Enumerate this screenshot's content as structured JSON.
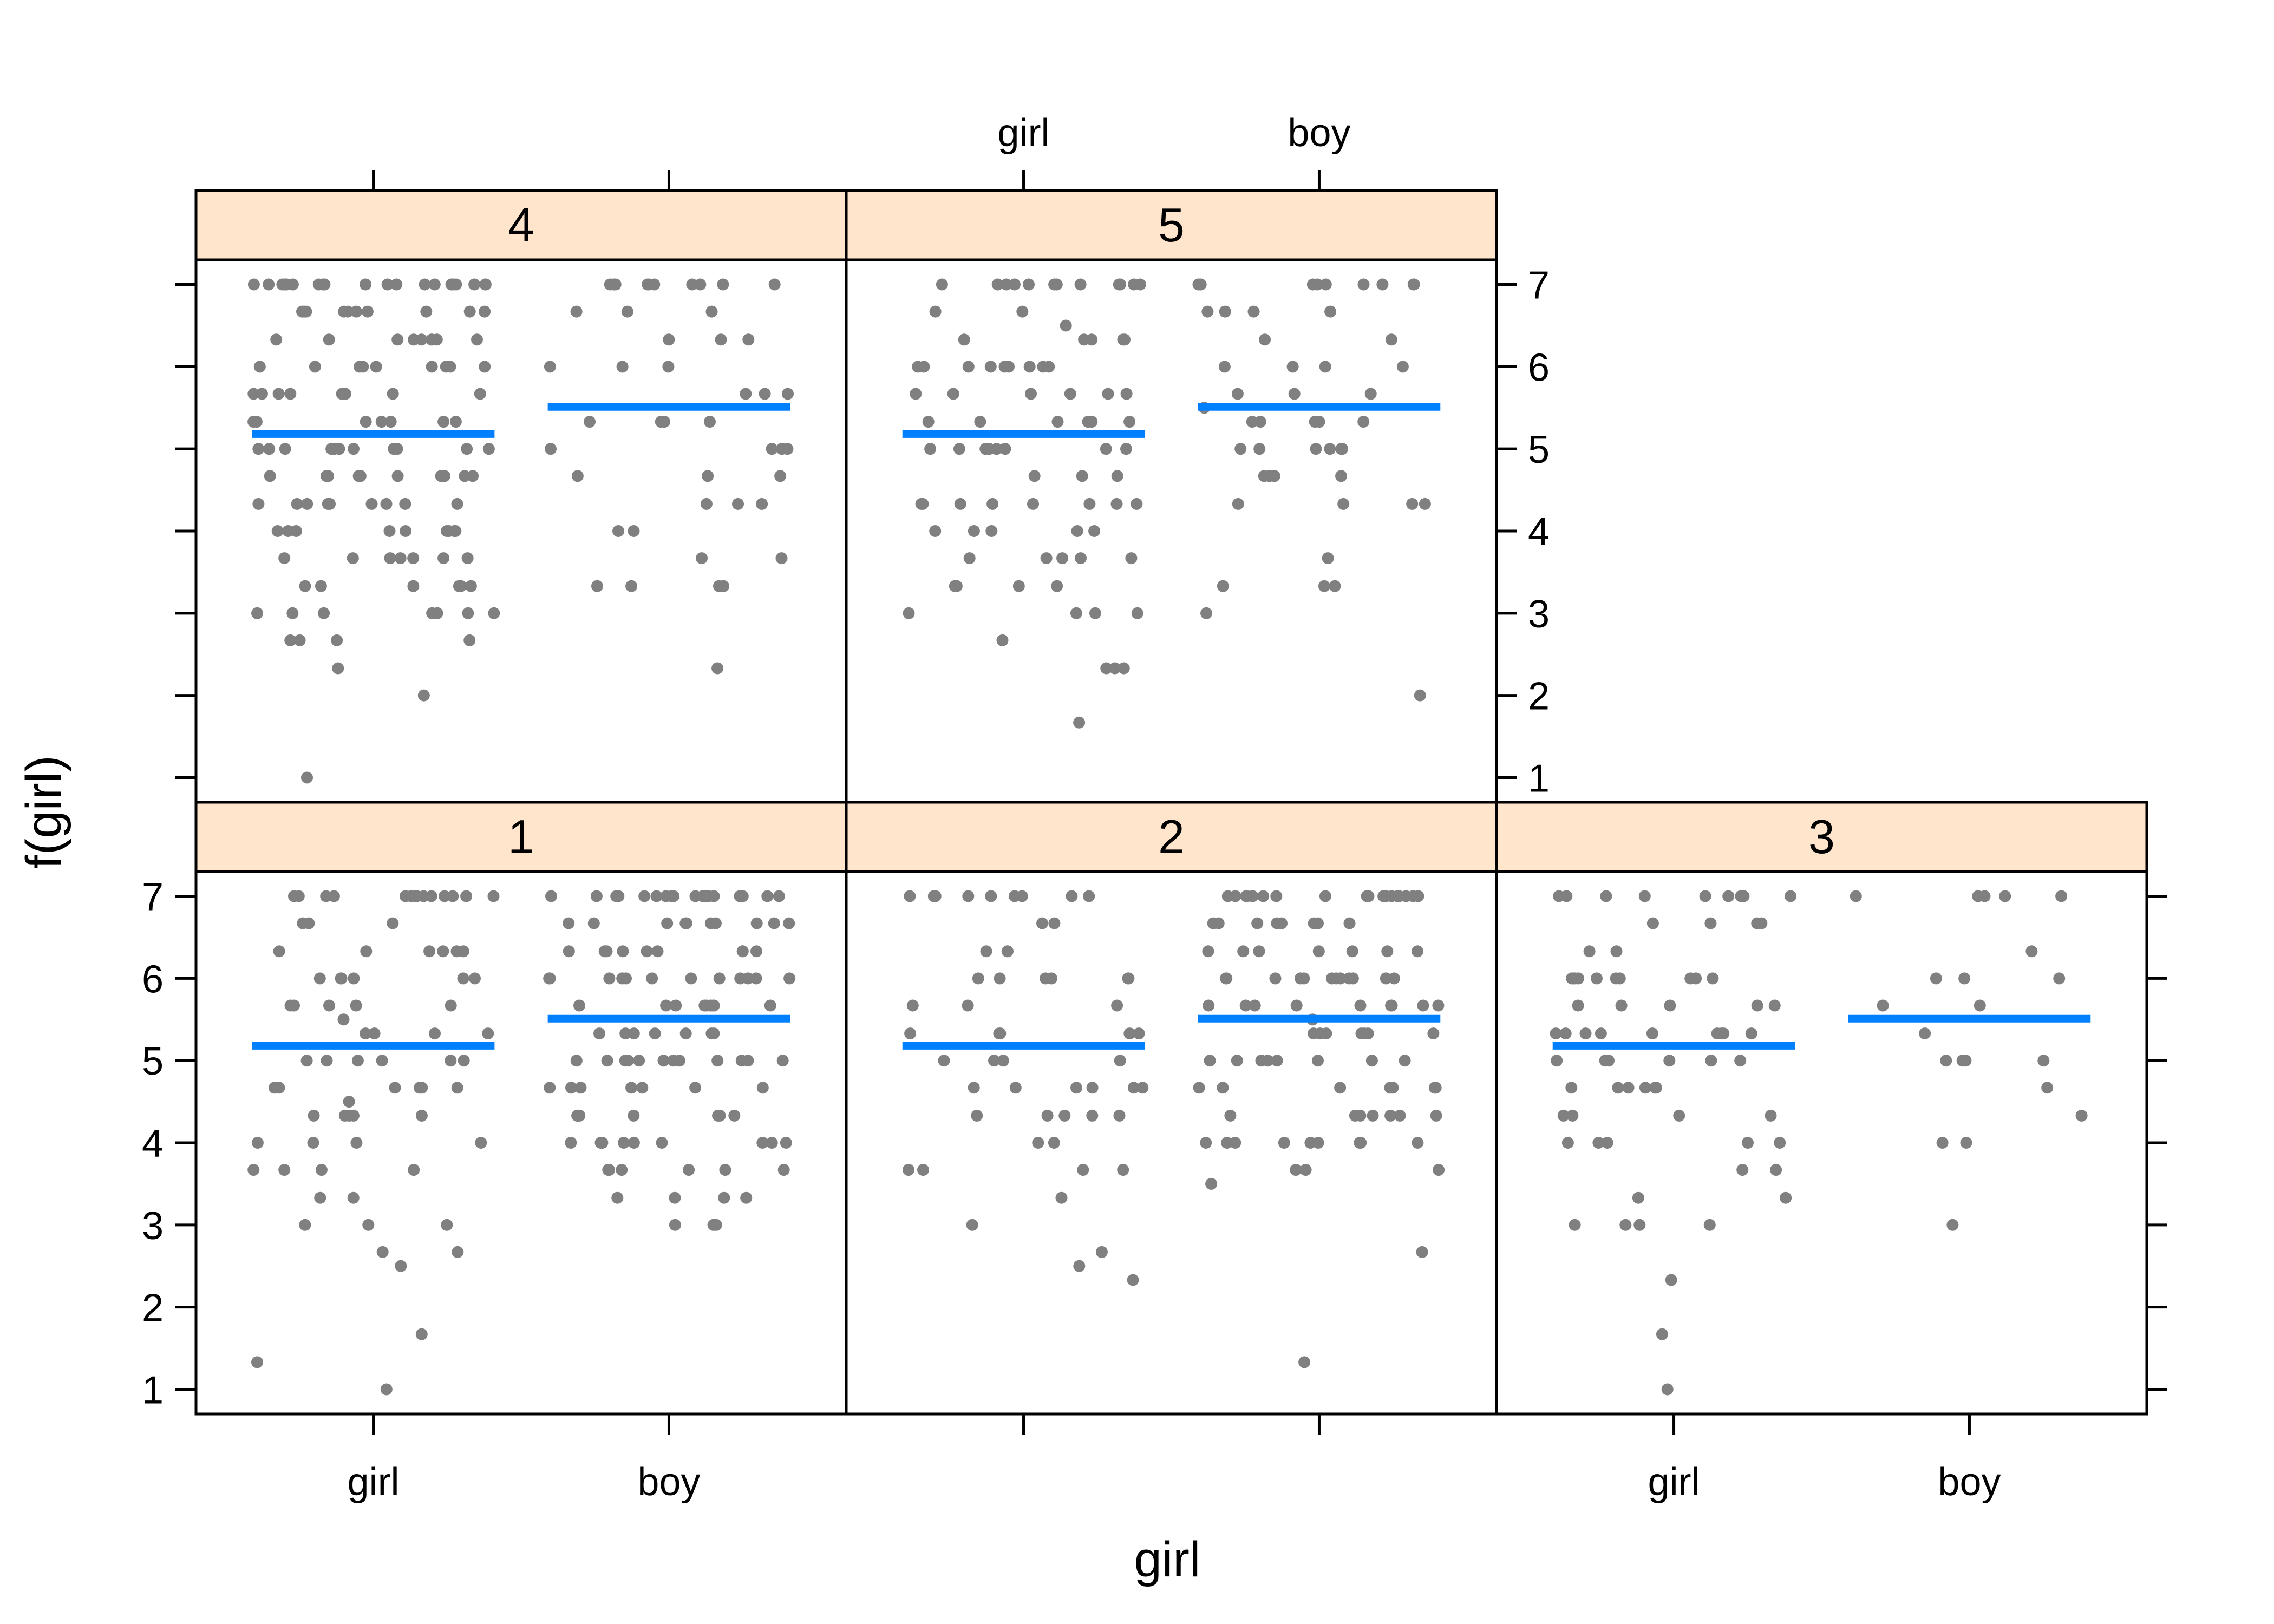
{
  "chart_data": {
    "type": "scatter",
    "xlabel": "girl",
    "ylabel": "f(girl)",
    "x_categories": [
      "girl",
      "boy"
    ],
    "y_ticks": [
      1,
      2,
      3,
      4,
      5,
      6,
      7
    ],
    "ylim": [
      0.7,
      7.3
    ],
    "colors": {
      "points": "#808080",
      "fit_line": "#0080ff",
      "strip": "#ffe5cc"
    },
    "panels": [
      {
        "label": "1",
        "fit": {
          "girl": 5.18,
          "boy": 5.51
        },
        "points": {
          "girl": [
            7,
            7,
            7,
            7,
            7,
            7,
            7,
            7,
            7,
            7,
            7,
            7,
            7,
            7,
            6.67,
            6.67,
            6.67,
            6.33,
            6.33,
            6.33,
            6.33,
            6.33,
            6.33,
            6,
            6,
            6,
            6,
            6,
            6,
            5.67,
            5.67,
            5.67,
            5.67,
            5.67,
            5.5,
            5.33,
            5.33,
            5.33,
            5.33,
            5,
            5,
            5,
            5,
            5,
            5,
            4.67,
            4.67,
            4.67,
            4.67,
            4.67,
            4.67,
            4.5,
            4.33,
            4.33,
            4.33,
            4.33,
            4.33,
            4,
            4,
            4,
            4,
            3.67,
            3.67,
            3.67,
            3.67,
            3.33,
            3.33,
            3,
            3,
            3,
            2.67,
            2.67,
            2.5,
            1.67,
            1.33,
            1
          ],
          "boy": [
            7,
            7,
            7,
            7,
            7,
            7,
            7,
            7,
            7,
            7,
            7,
            7,
            7,
            7,
            7,
            7,
            7,
            7,
            6.67,
            6.67,
            6.67,
            6.67,
            6.67,
            6.67,
            6.67,
            6.67,
            6.67,
            6.67,
            6.33,
            6.33,
            6.33,
            6.33,
            6.33,
            6.33,
            6.33,
            6.33,
            6.33,
            6,
            6,
            6,
            6,
            6,
            6,
            6,
            6,
            6,
            6,
            6,
            6,
            5.67,
            5.67,
            5.67,
            5.67,
            5.67,
            5.67,
            5.67,
            5.67,
            5.67,
            5.33,
            5.33,
            5.33,
            5.33,
            5.33,
            5.33,
            5.33,
            5,
            5,
            5,
            5,
            5,
            5,
            5,
            5,
            5,
            5,
            5,
            5,
            5,
            4.67,
            4.67,
            4.67,
            4.67,
            4.67,
            4.67,
            4.67,
            4.33,
            4.33,
            4.33,
            4.33,
            4.33,
            4.33,
            4.33,
            4,
            4,
            4,
            4,
            4,
            4,
            4,
            4,
            4,
            3.67,
            3.67,
            3.67,
            3.67,
            3.67,
            3.67,
            3.33,
            3.33,
            3.33,
            3.33,
            3,
            3,
            3
          ]
        }
      },
      {
        "label": "2",
        "fit": {
          "girl": 5.18,
          "boy": 5.51
        },
        "points": {
          "girl": [
            7,
            7,
            7,
            7,
            7,
            7,
            7,
            7,
            7,
            6.67,
            6.67,
            6.33,
            6.33,
            6.33,
            6,
            6,
            6,
            6,
            6,
            6,
            5.67,
            5.67,
            5.67,
            5.33,
            5.33,
            5.33,
            5.33,
            5.33,
            5,
            5,
            5,
            5,
            4.67,
            4.67,
            4.67,
            4.67,
            4.67,
            4.67,
            4.33,
            4.33,
            4.33,
            4.33,
            4.33,
            4,
            4,
            3.67,
            3.67,
            3.67,
            3.67,
            3.33,
            3,
            2.67,
            2.5,
            2.33
          ],
          "boy": [
            7,
            7,
            7,
            7,
            7,
            7,
            7,
            7,
            7,
            7,
            7,
            7,
            7,
            7,
            7,
            7,
            7,
            7,
            7,
            6.67,
            6.67,
            6.67,
            6.67,
            6.67,
            6.67,
            6.67,
            6.67,
            6.33,
            6.33,
            6.33,
            6.33,
            6.33,
            6.33,
            6.33,
            6,
            6,
            6,
            6,
            6,
            6,
            6,
            6,
            6,
            6,
            6,
            6,
            5.67,
            5.67,
            5.67,
            5.67,
            5.67,
            5.67,
            5.67,
            5.67,
            5.67,
            5.5,
            5.33,
            5.33,
            5.33,
            5.33,
            5.33,
            5.33,
            5.33,
            5,
            5,
            5,
            5,
            5,
            5,
            5,
            5,
            4.67,
            4.67,
            4.67,
            4.67,
            4.67,
            4.67,
            4.67,
            4.33,
            4.33,
            4.33,
            4.33,
            4.33,
            4.33,
            4.33,
            4,
            4,
            4,
            4,
            4,
            4,
            4,
            4,
            4,
            3.67,
            3.67,
            3.67,
            3.5,
            2.67,
            1.33
          ]
        }
      },
      {
        "label": "3",
        "fit": {
          "girl": 5.18,
          "boy": 5.51
        },
        "points": {
          "girl": [
            7,
            7,
            7,
            7,
            7,
            7,
            7,
            7,
            7,
            6.67,
            6.67,
            6.67,
            6.67,
            6.33,
            6.33,
            6,
            6,
            6,
            6,
            6,
            6,
            6,
            6,
            6,
            6,
            5.67,
            5.67,
            5.67,
            5.67,
            5.67,
            5.33,
            5.33,
            5.33,
            5.33,
            5.33,
            5.33,
            5.33,
            5.33,
            5.33,
            5,
            5,
            5,
            5,
            5,
            5,
            4.67,
            4.67,
            4.67,
            4.67,
            4.67,
            4.67,
            4.33,
            4.33,
            4.33,
            4.33,
            4,
            4,
            4,
            4,
            4,
            3.67,
            3.67,
            3.33,
            3.33,
            3,
            3,
            3,
            3,
            2.33,
            1.67,
            1
          ],
          "boy": [
            7,
            7,
            7,
            7,
            7,
            6.33,
            6,
            6,
            6,
            5.67,
            5.67,
            5.33,
            5,
            5,
            5,
            5,
            4.67,
            4.33,
            4,
            4,
            3
          ]
        }
      },
      {
        "label": "4",
        "fit": {
          "girl": 5.18,
          "boy": 5.51
        },
        "points": {
          "girl": [
            7,
            7,
            7,
            7,
            7,
            7,
            7,
            7,
            7,
            7,
            7,
            7,
            7,
            7,
            7,
            7,
            7,
            7,
            7,
            7,
            6.67,
            6.67,
            6.67,
            6.67,
            6.67,
            6.67,
            6.67,
            6.67,
            6.67,
            6.67,
            6.33,
            6.33,
            6.33,
            6.33,
            6.33,
            6.33,
            6.33,
            6.33,
            6.33,
            6,
            6,
            6,
            6,
            6,
            6,
            6,
            6,
            6,
            5.67,
            5.67,
            5.67,
            5.67,
            5.67,
            5.67,
            5.67,
            5.67,
            5.67,
            5.33,
            5.33,
            5.33,
            5.33,
            5.33,
            5.33,
            5.33,
            5,
            5,
            5,
            5,
            5,
            5,
            5,
            5,
            5,
            5,
            5,
            4.67,
            4.67,
            4.67,
            4.67,
            4.67,
            4.67,
            4.67,
            4.67,
            4.67,
            4.67,
            4.33,
            4.33,
            4.33,
            4.33,
            4.33,
            4.33,
            4.33,
            4.33,
            4.33,
            4,
            4,
            4,
            4,
            4,
            4,
            4,
            4,
            4,
            3.67,
            3.67,
            3.67,
            3.67,
            3.67,
            3.67,
            3.67,
            3.33,
            3.33,
            3.33,
            3.33,
            3.33,
            3.33,
            3,
            3,
            3,
            3,
            3,
            3,
            3,
            2.67,
            2.67,
            2.67,
            2.67,
            2.33,
            2,
            1
          ],
          "boy": [
            7,
            7,
            7,
            7,
            7,
            7,
            7,
            7,
            7,
            7,
            6.67,
            6.67,
            6.67,
            6.33,
            6.33,
            6.33,
            6,
            6,
            6,
            5.67,
            5.67,
            5.67,
            5.33,
            5.33,
            5.33,
            5.33,
            5,
            5,
            5,
            5,
            4.67,
            4.67,
            4.67,
            4.33,
            4.33,
            4.33,
            4,
            4,
            3.67,
            3.67,
            3.33,
            3.33,
            3.33,
            3.33,
            2.33
          ]
        }
      },
      {
        "label": "5",
        "fit": {
          "girl": 5.18,
          "boy": 5.51
        },
        "points": {
          "girl": [
            7,
            7,
            7,
            7,
            7,
            7,
            7,
            7,
            7,
            7,
            7,
            7,
            6.67,
            6.67,
            6.5,
            6.33,
            6.33,
            6.33,
            6.33,
            6.33,
            6,
            6,
            6,
            6,
            6,
            6,
            6,
            6,
            6,
            5.67,
            5.67,
            5.67,
            5.67,
            5.67,
            5.67,
            5.33,
            5.33,
            5.33,
            5.33,
            5.33,
            5.33,
            5,
            5,
            5,
            5,
            5,
            5,
            5,
            5,
            4.67,
            4.67,
            4.67,
            4.33,
            4.33,
            4.33,
            4.33,
            4.33,
            4.33,
            4.33,
            4.33,
            4,
            4,
            4,
            4,
            4,
            3.67,
            3.67,
            3.67,
            3.67,
            3.67,
            3.33,
            3.33,
            3.33,
            3.33,
            3,
            3,
            3,
            3,
            2.67,
            2.33,
            2.33,
            2.33,
            1.67
          ],
          "boy": [
            7,
            7,
            7,
            7,
            7,
            7,
            7,
            7,
            7,
            6.67,
            6.67,
            6.67,
            6.67,
            6.33,
            6.33,
            6,
            6,
            6,
            6,
            5.67,
            5.67,
            5.67,
            5.5,
            5.33,
            5.33,
            5.33,
            5.33,
            5.33,
            5,
            5,
            5,
            5,
            5,
            5,
            4.67,
            4.67,
            4.67,
            4.67,
            4.33,
            4.33,
            4.33,
            4.33,
            3.67,
            3.33,
            3.33,
            3.33,
            3,
            2
          ]
        }
      }
    ],
    "layout_grid": [
      {
        "label": "1",
        "row": 0,
        "col": 0
      },
      {
        "label": "2",
        "row": 0,
        "col": 1
      },
      {
        "label": "3",
        "row": 0,
        "col": 2
      },
      {
        "label": "4",
        "row": 1,
        "col": 0
      },
      {
        "label": "5",
        "row": 1,
        "col": 1
      }
    ]
  }
}
